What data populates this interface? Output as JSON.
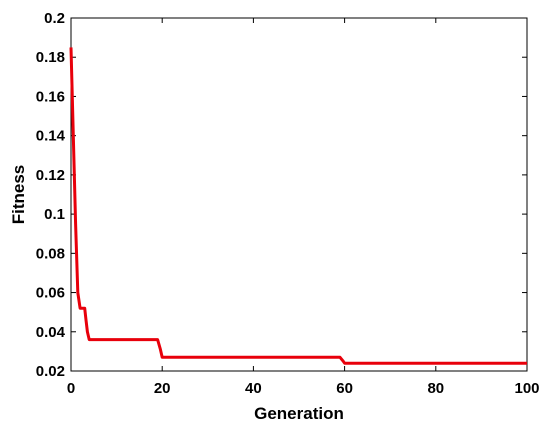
{
  "chart_data": {
    "type": "line",
    "title": "",
    "xlabel": "Generation",
    "ylabel": "Fitness",
    "xlim": [
      0,
      100
    ],
    "ylim": [
      0.02,
      0.2
    ],
    "xticks": [
      0,
      20,
      40,
      60,
      80,
      100
    ],
    "xtick_labels": [
      "0",
      "20",
      "40",
      "60",
      "80",
      "100"
    ],
    "yticks": [
      0.02,
      0.04,
      0.06,
      0.08,
      0.1,
      0.12,
      0.14,
      0.16,
      0.18,
      0.2
    ],
    "ytick_labels": [
      "0.02",
      "0.04",
      "0.06",
      "0.08",
      "0.1",
      "0.12",
      "0.14",
      "0.16",
      "0.18",
      "0.2"
    ],
    "grid": false,
    "legend": "none",
    "series": [
      {
        "color": "#e8000b",
        "x": [
          0,
          0.5,
          1,
          1.5,
          2,
          3,
          3.3,
          3.6,
          4,
          19,
          19.6,
          20,
          59,
          59.7,
          60,
          100
        ],
        "y": [
          0.185,
          0.14,
          0.095,
          0.06,
          0.052,
          0.052,
          0.046,
          0.04,
          0.036,
          0.036,
          0.031,
          0.027,
          0.027,
          0.025,
          0.024,
          0.024
        ]
      }
    ]
  }
}
